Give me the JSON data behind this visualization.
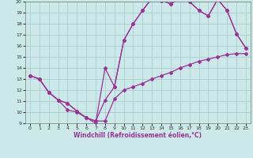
{
  "xlabel": "Windchill (Refroidissement éolien,°C)",
  "xlim": [
    -0.5,
    23.5
  ],
  "ylim": [
    9,
    20
  ],
  "yticks": [
    9,
    10,
    11,
    12,
    13,
    14,
    15,
    16,
    17,
    18,
    19,
    20
  ],
  "xticks": [
    0,
    1,
    2,
    3,
    4,
    5,
    6,
    7,
    8,
    9,
    10,
    11,
    12,
    13,
    14,
    15,
    16,
    17,
    18,
    19,
    20,
    21,
    22,
    23
  ],
  "bg_color": "#cce8e8",
  "grid_color": "#aacece",
  "line_color": "#993399",
  "line1_x": [
    0,
    1,
    2,
    3,
    4,
    5,
    6,
    7,
    8,
    9,
    10,
    11,
    12,
    13,
    14,
    15,
    16,
    17,
    18,
    19,
    20,
    21,
    22,
    23
  ],
  "line1_y": [
    13.3,
    13.0,
    11.8,
    11.1,
    10.8,
    10.1,
    9.5,
    9.2,
    9.2,
    11.2,
    12.0,
    12.3,
    12.6,
    13.0,
    13.3,
    13.6,
    14.0,
    14.3,
    14.6,
    14.8,
    15.0,
    15.2,
    15.3,
    15.3
  ],
  "line2_x": [
    0,
    1,
    2,
    3,
    4,
    5,
    6,
    7,
    8,
    9,
    10,
    11,
    12,
    13,
    14,
    15,
    16,
    17,
    18,
    19,
    20,
    21,
    22,
    23
  ],
  "line2_y": [
    13.3,
    13.0,
    11.8,
    11.1,
    10.8,
    10.1,
    9.5,
    9.2,
    11.1,
    12.3,
    16.5,
    18.0,
    19.2,
    20.3,
    20.1,
    19.8,
    20.3,
    20.0,
    19.2,
    18.7,
    20.2,
    19.2,
    17.1,
    15.8
  ],
  "line3_x": [
    0,
    1,
    2,
    3,
    4,
    5,
    6,
    7,
    8,
    9,
    10,
    11,
    12,
    13,
    14,
    15,
    16,
    17,
    18,
    19,
    20,
    21,
    22,
    23
  ],
  "line3_y": [
    13.3,
    13.0,
    11.8,
    11.1,
    10.2,
    10.0,
    9.5,
    9.0,
    14.0,
    12.3,
    16.5,
    18.0,
    19.2,
    20.3,
    20.1,
    19.8,
    20.3,
    20.0,
    19.2,
    18.7,
    20.2,
    19.2,
    17.1,
    15.8
  ]
}
